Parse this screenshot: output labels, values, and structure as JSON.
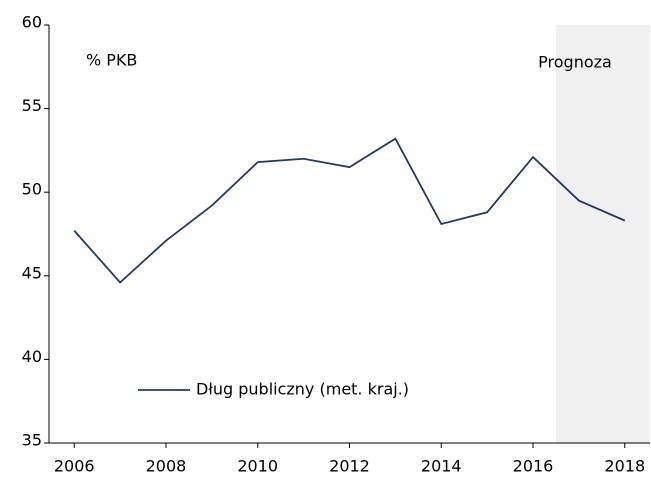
{
  "chart_data": {
    "type": "line",
    "y_label": "% PKB",
    "annotation": "Prognoza",
    "forecast_span": [
      2016.5,
      2018.55
    ],
    "x": [
      2006,
      2007,
      2008,
      2009,
      2010,
      2011,
      2012,
      2013,
      2014,
      2015,
      2016,
      2017,
      2018
    ],
    "series": [
      {
        "name": "Dług publiczny (met. kraj.)",
        "color": "#1f3b6b",
        "values": [
          47.7,
          44.6,
          47.1,
          49.2,
          51.8,
          52.0,
          51.5,
          53.2,
          48.1,
          48.8,
          52.1,
          49.5,
          48.3
        ]
      }
    ],
    "xlim": [
      2005.45,
      2018.55
    ],
    "xticks": [
      2006,
      2008,
      2010,
      2012,
      2014,
      2016,
      2018
    ],
    "ylim": [
      35,
      60
    ],
    "yticks": [
      35,
      40,
      45,
      50,
      55,
      60
    ],
    "grid": false,
    "legend": "lower left"
  }
}
